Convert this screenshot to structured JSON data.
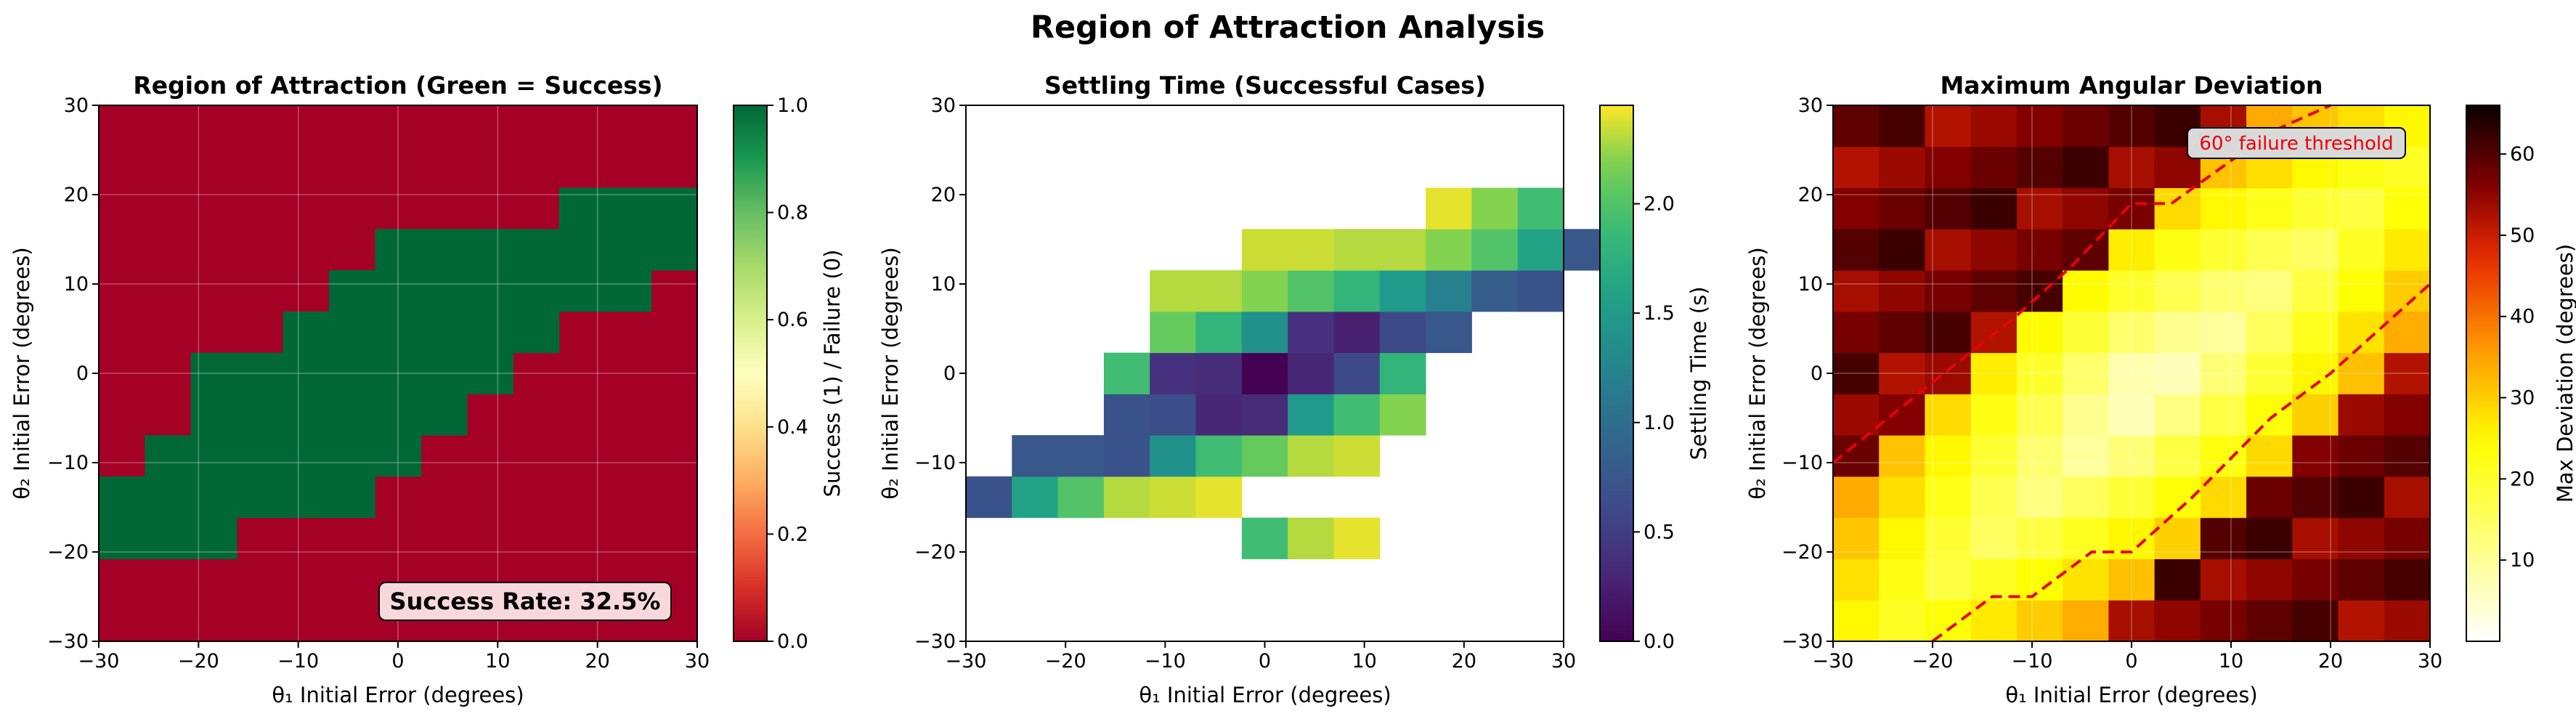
{
  "figure": {
    "title": "Region of Attraction Analysis"
  },
  "chart_data": [
    {
      "type": "heatmap",
      "title": "Region of Attraction (Green = Success)",
      "xlabel": "θ₁ Initial Error (degrees)",
      "ylabel": "θ₂ Initial Error (degrees)",
      "xlim": [
        -30,
        30
      ],
      "ylim": [
        -30,
        30
      ],
      "xticks": [
        "−30",
        "−20",
        "−10",
        "0",
        "10",
        "20",
        "30"
      ],
      "yticks": [
        "−30",
        "−20",
        "−10",
        "0",
        "10",
        "20",
        "30"
      ],
      "grid": true,
      "grid_step_deg": 4.615,
      "colormap": "RdYlGn",
      "colorbar": {
        "label": "Success (1) / Failure (0)",
        "range": [
          0,
          1
        ],
        "ticks": [
          "0.0",
          "0.2",
          "0.4",
          "0.6",
          "0.8",
          "1.0"
        ]
      },
      "colors": {
        "success": "#006837",
        "failure": "#a50026"
      },
      "success_band": [
        {
          "theta2_row_center": -27.7,
          "theta1_from": null,
          "theta1_to": null
        },
        {
          "theta2_row_center": -23.1,
          "theta1_from": null,
          "theta1_to": null
        },
        {
          "theta2_row_center": -18.5,
          "theta1_from": -30.0,
          "theta1_to": -16.2
        },
        {
          "theta2_row_center": -13.8,
          "theta1_from": -30.0,
          "theta1_to": -2.3
        },
        {
          "theta2_row_center": -9.2,
          "theta1_from": -25.4,
          "theta1_to": 2.3
        },
        {
          "theta2_row_center": -4.6,
          "theta1_from": -20.8,
          "theta1_to": 6.9
        },
        {
          "theta2_row_center": 0.0,
          "theta1_from": -20.8,
          "theta1_to": 11.5
        },
        {
          "theta2_row_center": 4.6,
          "theta1_from": -11.5,
          "theta1_to": 16.2
        },
        {
          "theta2_row_center": 9.2,
          "theta1_from": -6.9,
          "theta1_to": 25.4
        },
        {
          "theta2_row_center": 13.8,
          "theta1_from": -2.3,
          "theta1_to": 30.0
        },
        {
          "theta2_row_center": 18.5,
          "theta1_from": 16.2,
          "theta1_to": 30.0
        },
        {
          "theta2_row_center": 23.1,
          "theta1_from": null,
          "theta1_to": null
        },
        {
          "theta2_row_center": 27.7,
          "theta1_from": null,
          "theta1_to": null
        }
      ],
      "annotation": "Success Rate: 32.5%"
    },
    {
      "type": "heatmap",
      "title": "Settling Time (Successful Cases)",
      "xlabel": "θ₁ Initial Error (degrees)",
      "ylabel": "θ₂ Initial Error (degrees)",
      "xlim": [
        -30,
        30
      ],
      "ylim": [
        -30,
        30
      ],
      "xticks": [
        "−30",
        "−20",
        "−10",
        "0",
        "10",
        "20",
        "30"
      ],
      "yticks": [
        "−30",
        "−20",
        "−10",
        "0",
        "10",
        "20",
        "30"
      ],
      "grid": false,
      "colormap": "viridis",
      "colorbar": {
        "label": "Settling Time (s)",
        "range": [
          0,
          2.45
        ],
        "ticks": [
          "0.0",
          "0.5",
          "1.0",
          "1.5",
          "2.0"
        ]
      },
      "cells": [
        {
          "theta1": 2.3,
          "theta2": -18.5,
          "values": [
            1.9,
            2.3,
            2.4
          ]
        },
        {
          "theta1": -27.7,
          "theta2": -13.8,
          "values": [
            0.7,
            1.6,
            2.0,
            2.3,
            2.35,
            2.4
          ]
        },
        {
          "theta1": -23.1,
          "theta2": -9.2,
          "values": [
            0.75,
            0.75,
            0.7,
            1.4,
            1.9,
            2.1,
            2.3,
            2.35
          ]
        },
        {
          "theta1": -13.8,
          "theta2": -4.6,
          "values": [
            0.7,
            0.65,
            0.3,
            0.35,
            1.5,
            1.9,
            2.2
          ]
        },
        {
          "theta1": -13.8,
          "theta2": 0.0,
          "values": [
            1.9,
            0.4,
            0.35,
            0.0,
            0.3,
            0.6,
            1.8
          ]
        },
        {
          "theta1": -9.2,
          "theta2": 4.6,
          "values": [
            2.1,
            1.8,
            1.4,
            0.4,
            0.25,
            0.6,
            0.75
          ]
        },
        {
          "theta1": -9.2,
          "theta2": 9.2,
          "values": [
            2.3,
            2.3,
            2.2,
            2.0,
            1.8,
            1.5,
            1.2,
            0.8,
            0.7
          ]
        },
        {
          "theta1": -2.3,
          "theta2": 13.8,
          "values": [
            2.35,
            2.35,
            2.3,
            2.3,
            2.2,
            2.0,
            1.6,
            0.75
          ]
        },
        {
          "theta1": 16.2,
          "theta2": 18.5,
          "values": [
            2.4,
            2.2,
            1.9
          ]
        }
      ]
    },
    {
      "type": "heatmap",
      "title": "Maximum Angular Deviation",
      "xlabel": "θ₁ Initial Error (degrees)",
      "ylabel": "θ₂ Initial Error (degrees)",
      "xlim": [
        -30,
        30
      ],
      "ylim": [
        -30,
        30
      ],
      "xticks": [
        "−30",
        "−20",
        "−10",
        "0",
        "10",
        "20",
        "30"
      ],
      "yticks": [
        "−30",
        "−20",
        "−10",
        "0",
        "10",
        "20",
        "30"
      ],
      "grid": true,
      "colormap": "hot_r",
      "colorbar": {
        "label": "Max Deviation (degrees)",
        "range": [
          0,
          66
        ],
        "ticks": [
          "10",
          "20",
          "30",
          "40",
          "50",
          "60"
        ]
      },
      "contour_label": "60° failure threshold",
      "contour_color": "#e8000b",
      "bright_band_center_line": "theta2 ≈ theta1 + 0 (diagonal)",
      "peak_low_deviation_at": [
        0,
        0
      ]
    }
  ]
}
